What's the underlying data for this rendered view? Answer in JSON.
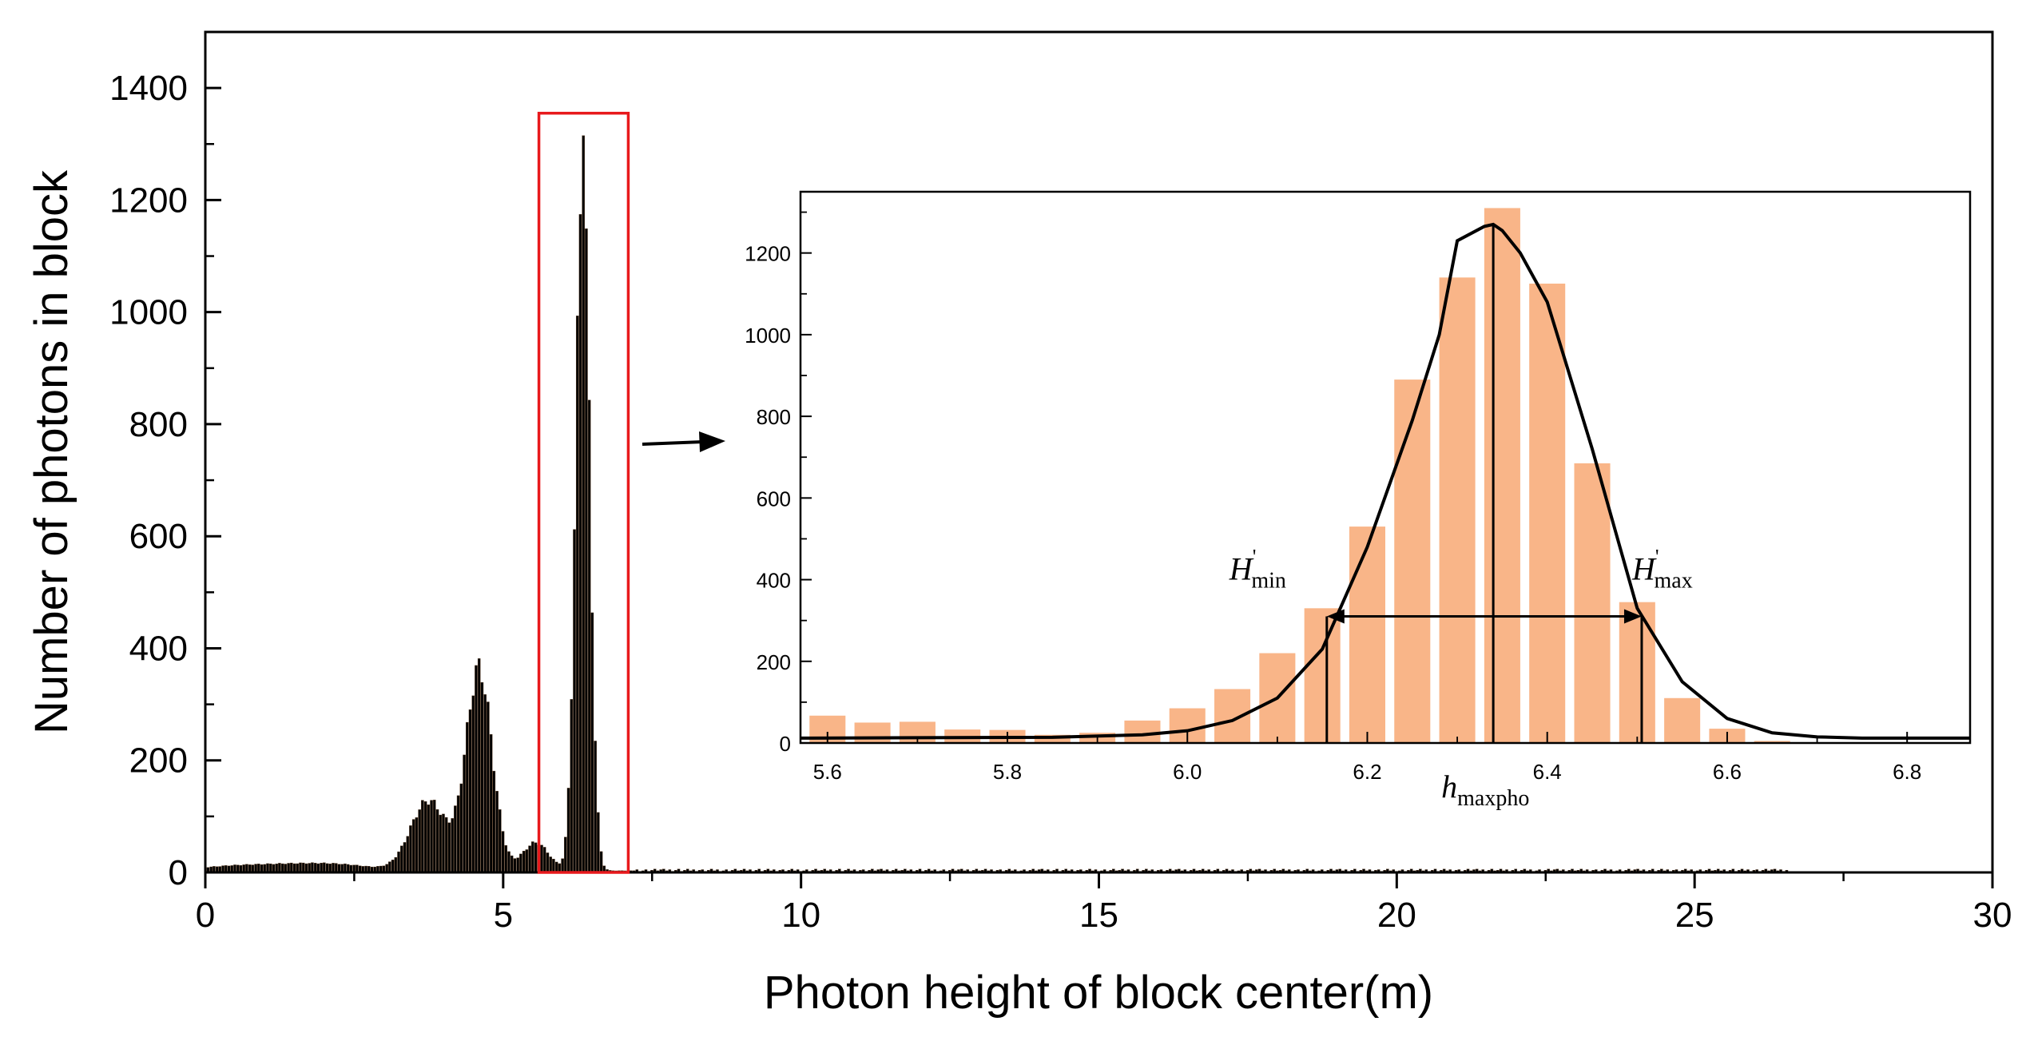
{
  "chart_data": [
    {
      "type": "bar",
      "title": "",
      "xlabel": "Photon height of block center(m)",
      "ylabel": "Number of photons in block",
      "xlim": [
        0,
        30
      ],
      "ylim": [
        0,
        1500
      ],
      "xticks": [
        0,
        5,
        10,
        15,
        20,
        25,
        30
      ],
      "yticks": [
        0,
        200,
        400,
        600,
        800,
        1000,
        1200,
        1400
      ],
      "grid": false,
      "bin_width": 0.05,
      "series": [
        {
          "name": "photon height histogram",
          "color": "#000000",
          "peaks": [
            {
              "center": 0.5,
              "height": 8,
              "sigma": 0.6
            },
            {
              "center": 1.6,
              "height": 10,
              "sigma": 0.6
            },
            {
              "center": 2.4,
              "height": 7,
              "sigma": 0.5
            },
            {
              "center": 3.75,
              "height": 125,
              "sigma": 0.3
            },
            {
              "center": 4.6,
              "height": 360,
              "sigma": 0.22
            },
            {
              "center": 5.55,
              "height": 50,
              "sigma": 0.22
            },
            {
              "center": 6.34,
              "height": 1270,
              "sigma": 0.115
            }
          ],
          "baseline": 3,
          "spike": {
            "x": 6.33,
            "y": 1315
          }
        }
      ],
      "annotations": {
        "highlight_box": {
          "x_range": [
            5.6,
            7.1
          ],
          "y_range": [
            0,
            1355
          ],
          "color": "#e8191c"
        },
        "arrow": "pointer from highlighted region to inset"
      }
    },
    {
      "type": "bar",
      "title": "",
      "xlabel": "",
      "ylabel": "",
      "xlim": [
        5.57,
        6.87
      ],
      "ylim": [
        0,
        1350
      ],
      "xticks": [
        5.6,
        5.8,
        6.0,
        6.2,
        6.4,
        6.6,
        6.8
      ],
      "xtick_labels": [
        "5.6",
        "5.8",
        "6.0",
        "6.2",
        "6.4",
        "6.6",
        "6.8"
      ],
      "yticks": [
        0,
        200,
        400,
        600,
        800,
        1000,
        1200
      ],
      "yminor_step": 100,
      "xminor_step": 0.1,
      "bar_color": "#f9b588",
      "bar_width": 0.04,
      "categories": [
        5.6,
        5.65,
        5.7,
        5.75,
        5.8,
        5.85,
        5.9,
        5.95,
        6.0,
        6.05,
        6.1,
        6.15,
        6.2,
        6.25,
        6.3,
        6.35,
        6.4,
        6.45,
        6.5,
        6.55,
        6.6,
        6.65
      ],
      "values": [
        67,
        50,
        52,
        33,
        32,
        20,
        25,
        55,
        85,
        132,
        220,
        330,
        530,
        890,
        1140,
        1310,
        1125,
        685,
        345,
        110,
        35,
        5
      ],
      "fit_curve": {
        "name": "Gaussian fit",
        "color": "#000000",
        "x": [
          5.57,
          5.85,
          5.95,
          6.0,
          6.05,
          6.1,
          6.15,
          6.2,
          6.25,
          6.28,
          6.3,
          6.33,
          6.34,
          6.35,
          6.37,
          6.4,
          6.45,
          6.5,
          6.55,
          6.6,
          6.65,
          6.7,
          6.75,
          6.87
        ],
        "y": [
          12,
          14,
          20,
          30,
          55,
          110,
          230,
          480,
          790,
          1000,
          1230,
          1265,
          1270,
          1255,
          1200,
          1080,
          720,
          330,
          150,
          60,
          25,
          15,
          12,
          12
        ]
      },
      "markers": {
        "h_min": 6.155,
        "h_max": 6.505,
        "h_peak": 6.34,
        "fwhm_level": 310
      },
      "labels": {
        "h_min_letter": "H",
        "h_min_sub": "min",
        "h_min_sup": "'",
        "h_max_letter": "H",
        "h_max_sub": "max",
        "h_max_sup": "'",
        "h_peak_letter": "h",
        "h_peak_sub": "maxpho"
      }
    }
  ]
}
